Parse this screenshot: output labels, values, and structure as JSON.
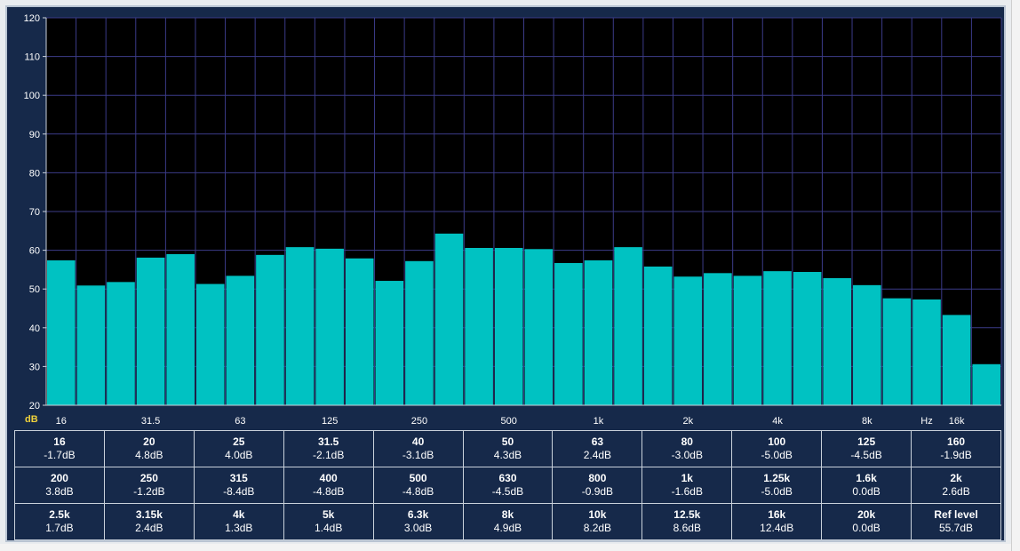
{
  "chart_data": {
    "type": "bar",
    "ylabel": "dB",
    "xlabel": "Hz",
    "ylim": [
      20,
      120
    ],
    "yticks": [
      20,
      30,
      40,
      50,
      60,
      70,
      80,
      90,
      100,
      110,
      120
    ],
    "xtick_labels": [
      "16",
      "31.5",
      "63",
      "125",
      "250",
      "500",
      "1k",
      "2k",
      "4k",
      "8k",
      "16k"
    ],
    "xtick_band_index": [
      0,
      3,
      6,
      9,
      12,
      15,
      18,
      21,
      24,
      27,
      30
    ],
    "x_unit_label": "Hz",
    "grid": true,
    "bar_color": "#00c2c2",
    "plot_background": "#000000",
    "grid_color": "#3b3b88",
    "values": [
      57.4,
      50.9,
      51.8,
      58.1,
      59.0,
      51.3,
      53.4,
      58.8,
      60.8,
      60.4,
      57.9,
      52.1,
      57.2,
      64.3,
      60.6,
      60.6,
      60.3,
      56.7,
      57.4,
      60.8,
      55.8,
      53.2,
      54.1,
      53.4,
      54.6,
      54.4,
      52.8,
      51.0,
      47.6,
      47.3,
      43.3,
      30.6
    ]
  },
  "table": {
    "rows": [
      [
        {
          "band": "16",
          "value": "-1.7dB"
        },
        {
          "band": "20",
          "value": "4.8dB"
        },
        {
          "band": "25",
          "value": "4.0dB"
        },
        {
          "band": "31.5",
          "value": "-2.1dB"
        },
        {
          "band": "40",
          "value": "-3.1dB"
        },
        {
          "band": "50",
          "value": "4.3dB"
        },
        {
          "band": "63",
          "value": "2.4dB"
        },
        {
          "band": "80",
          "value": "-3.0dB"
        },
        {
          "band": "100",
          "value": "-5.0dB"
        },
        {
          "band": "125",
          "value": "-4.5dB"
        },
        {
          "band": "160",
          "value": "-1.9dB"
        }
      ],
      [
        {
          "band": "200",
          "value": "3.8dB"
        },
        {
          "band": "250",
          "value": "-1.2dB"
        },
        {
          "band": "315",
          "value": "-8.4dB"
        },
        {
          "band": "400",
          "value": "-4.8dB"
        },
        {
          "band": "500",
          "value": "-4.8dB"
        },
        {
          "band": "630",
          "value": "-4.5dB"
        },
        {
          "band": "800",
          "value": "-0.9dB"
        },
        {
          "band": "1k",
          "value": "-1.6dB"
        },
        {
          "band": "1.25k",
          "value": "-5.0dB"
        },
        {
          "band": "1.6k",
          "value": "0.0dB"
        },
        {
          "band": "2k",
          "value": "2.6dB"
        }
      ],
      [
        {
          "band": "2.5k",
          "value": "1.7dB"
        },
        {
          "band": "3.15k",
          "value": "2.4dB"
        },
        {
          "band": "4k",
          "value": "1.3dB"
        },
        {
          "band": "5k",
          "value": "1.4dB"
        },
        {
          "band": "6.3k",
          "value": "3.0dB"
        },
        {
          "band": "8k",
          "value": "4.9dB"
        },
        {
          "band": "10k",
          "value": "8.2dB"
        },
        {
          "band": "12.5k",
          "value": "8.6dB"
        },
        {
          "band": "16k",
          "value": "12.4dB"
        },
        {
          "band": "20k",
          "value": "0.0dB"
        },
        {
          "band": "Ref level",
          "value": "55.7dB"
        }
      ]
    ]
  }
}
